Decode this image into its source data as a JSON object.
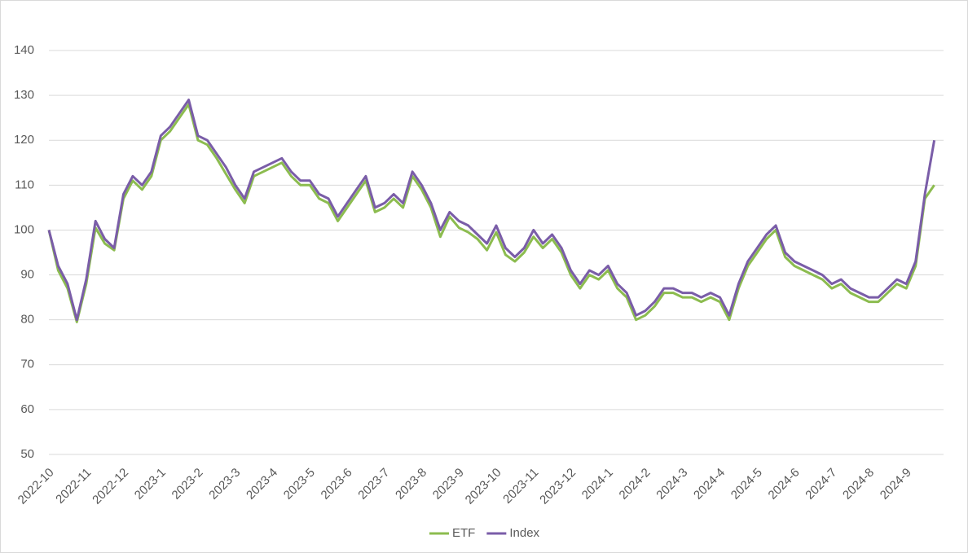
{
  "chart_data": {
    "type": "line",
    "categories": [
      "2022-10",
      null,
      null,
      null,
      "2022-11",
      null,
      null,
      null,
      "2022-12",
      null,
      null,
      null,
      "2023-1",
      null,
      null,
      null,
      "2023-2",
      null,
      null,
      null,
      "2023-3",
      null,
      null,
      null,
      "2023-4",
      null,
      null,
      null,
      "2023-5",
      null,
      null,
      null,
      "2023-6",
      null,
      null,
      null,
      "2023-7",
      null,
      null,
      null,
      "2023-8",
      null,
      null,
      null,
      "2023-9",
      null,
      null,
      null,
      "2023-10",
      null,
      null,
      null,
      "2023-11",
      null,
      null,
      null,
      "2023-12",
      null,
      null,
      null,
      "2024-1",
      null,
      null,
      null,
      "2024-2",
      null,
      null,
      null,
      "2024-3",
      null,
      null,
      null,
      "2024-4",
      null,
      null,
      null,
      "2024-5",
      null,
      null,
      null,
      "2024-6",
      null,
      null,
      null,
      "2024-7",
      null,
      null,
      null,
      "2024-8",
      null,
      null,
      null,
      "2024-9",
      null,
      null,
      null
    ],
    "series": [
      {
        "name": "ETF",
        "color": "#8cbc4f",
        "values": [
          100,
          91,
          87,
          79.5,
          88,
          100.5,
          97,
          95.5,
          107,
          111,
          109,
          112,
          120,
          122,
          125,
          128,
          120,
          119,
          116,
          112.5,
          109,
          106,
          112,
          113,
          114,
          115,
          112,
          110,
          110,
          107,
          106,
          102,
          105,
          108,
          111,
          104,
          105,
          107,
          105,
          112,
          109,
          105,
          98.5,
          103,
          100.5,
          99.5,
          98,
          95.5,
          99.5,
          94.5,
          93,
          95,
          98.5,
          96,
          98,
          95,
          90,
          87,
          90,
          89,
          91,
          87,
          85,
          80,
          81,
          83,
          86,
          86,
          85,
          85,
          84,
          85,
          84,
          80,
          87,
          92,
          95,
          98,
          100,
          94,
          92,
          91,
          90,
          89,
          87,
          88,
          86,
          85,
          84,
          84,
          86,
          88,
          87,
          92,
          107,
          110
        ]
      },
      {
        "name": "Index",
        "color": "#7a5da8",
        "values": [
          100,
          92,
          88,
          80,
          89,
          102,
          98,
          96,
          108,
          112,
          110,
          113,
          121,
          123,
          126,
          129,
          121,
          120,
          117,
          114,
          110,
          107,
          113,
          114,
          115,
          116,
          113,
          111,
          111,
          108,
          107,
          103,
          106,
          109,
          112,
          105,
          106,
          108,
          106,
          113,
          110,
          106,
          100,
          104,
          102,
          101,
          99,
          97,
          101,
          96,
          94,
          96,
          100,
          97,
          99,
          96,
          91,
          88,
          91,
          90,
          92,
          88,
          86,
          81,
          82,
          84,
          87,
          87,
          86,
          86,
          85,
          86,
          85,
          81,
          88,
          93,
          96,
          99,
          101,
          95,
          93,
          92,
          91,
          90,
          88,
          89,
          87,
          86,
          85,
          85,
          87,
          89,
          88,
          93,
          108,
          120
        ]
      }
    ],
    "ylim": [
      50,
      140
    ],
    "yticks": [
      50,
      60,
      70,
      80,
      90,
      100,
      110,
      120,
      130,
      140
    ],
    "grid": true,
    "legend": "bottom"
  }
}
